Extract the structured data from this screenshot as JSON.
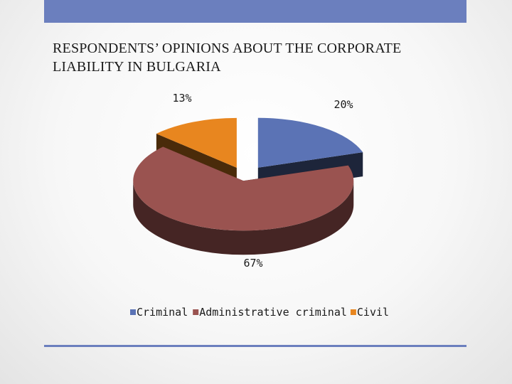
{
  "slide": {
    "title_line1": "RESPONDENTS’ OPINIONS ABOUT THE CORPORATE",
    "title_line2": "LIABILITY IN BULGARIA"
  },
  "chart_data": {
    "type": "pie",
    "style": "3d-exploded",
    "categories": [
      "Criminal",
      "Administrative criminal",
      "Civil"
    ],
    "values": [
      20,
      67,
      13
    ],
    "labels": [
      "20%",
      "67%",
      "13%"
    ],
    "colors": [
      "#5b73b5",
      "#9a5350",
      "#e8861f"
    ],
    "legend": "bottom"
  }
}
